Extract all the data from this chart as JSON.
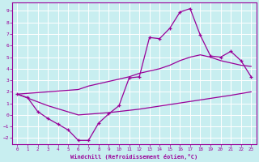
{
  "xlabel": "Windchill (Refroidissement éolien,°C)",
  "bg_color": "#c8eef0",
  "line_color": "#990099",
  "grid_color": "#ffffff",
  "xlim": [
    -0.5,
    23.5
  ],
  "ylim": [
    -2.5,
    9.7
  ],
  "xticks": [
    0,
    1,
    2,
    3,
    4,
    5,
    6,
    7,
    8,
    9,
    10,
    11,
    12,
    13,
    14,
    15,
    16,
    17,
    18,
    19,
    20,
    21,
    22,
    23
  ],
  "yticks": [
    -2,
    -1,
    0,
    1,
    2,
    3,
    4,
    5,
    6,
    7,
    8,
    9
  ],
  "zigzag_x": [
    0,
    1,
    2,
    3,
    4,
    5,
    6,
    7,
    8,
    9,
    10,
    11,
    12,
    13,
    14,
    15,
    16,
    17,
    18,
    19,
    20,
    21,
    22,
    23
  ],
  "zigzag_y": [
    1.8,
    1.5,
    0.3,
    -0.3,
    -0.8,
    -1.3,
    -2.2,
    -2.2,
    -0.7,
    0.1,
    0.8,
    3.2,
    3.3,
    6.7,
    6.6,
    7.5,
    8.9,
    9.2,
    6.9,
    5.1,
    5.0,
    5.5,
    4.7,
    3.3
  ],
  "upper_x": [
    0,
    3,
    6,
    7,
    8,
    9,
    10,
    11,
    12,
    13,
    14,
    15,
    16,
    17,
    18,
    19,
    20,
    21,
    22,
    23
  ],
  "upper_y": [
    1.8,
    2.0,
    2.2,
    2.5,
    2.7,
    2.9,
    3.1,
    3.3,
    3.6,
    3.8,
    4.0,
    4.3,
    4.7,
    5.0,
    5.2,
    5.0,
    4.7,
    4.5,
    4.3,
    4.2
  ],
  "lower_x": [
    0,
    3,
    6,
    9,
    12,
    15,
    18,
    21,
    23
  ],
  "lower_y": [
    1.8,
    0.8,
    0.0,
    0.2,
    0.5,
    0.9,
    1.3,
    1.7,
    2.0
  ]
}
